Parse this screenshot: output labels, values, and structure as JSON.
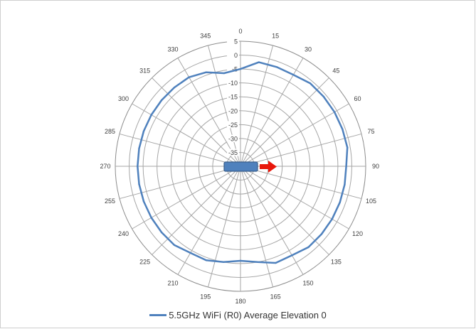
{
  "chart_data": {
    "type": "polar-line",
    "angle_labels": [
      "0",
      "15",
      "30",
      "45",
      "60",
      "75",
      "90",
      "105",
      "120",
      "135",
      "150",
      "165",
      "180",
      "195",
      "210",
      "225",
      "240",
      "255",
      "270",
      "285",
      "300",
      "315",
      "330",
      "345"
    ],
    "radial_ticks": [
      5,
      0,
      -5,
      -10,
      -15,
      -20,
      -25,
      -30,
      -35
    ],
    "radial_range": [
      -40,
      5
    ],
    "grid": true,
    "legend_position": "bottom",
    "series": [
      {
        "name": "5.5GHz WiFi (R0) Average Elevation 0",
        "color": "#4f81bd",
        "angles": [
          0,
          10,
          20,
          30,
          40,
          50,
          60,
          70,
          80,
          90,
          100,
          110,
          120,
          130,
          140,
          150,
          160,
          170,
          180,
          190,
          200,
          210,
          220,
          230,
          240,
          250,
          260,
          270,
          280,
          290,
          300,
          310,
          320,
          330,
          340,
          350
        ],
        "values": [
          -5,
          -2,
          -2,
          -2,
          -1,
          -1,
          -1,
          -1,
          -1,
          -2,
          -2,
          -2,
          -2,
          -2,
          -2,
          -3,
          -3,
          -5,
          -6,
          -5,
          -4,
          -4,
          -3,
          -3,
          -3,
          -3,
          -3,
          -3,
          -3,
          -3,
          -3,
          -3,
          -3,
          -3,
          -4,
          -6
        ]
      }
    ]
  },
  "device_marker": {
    "color": "#4f81bd",
    "border_color": "#385d8a",
    "arrow_color": "#e8170b"
  },
  "legend": {
    "label": "5.5GHz WiFi (R0) Average Elevation 0"
  }
}
